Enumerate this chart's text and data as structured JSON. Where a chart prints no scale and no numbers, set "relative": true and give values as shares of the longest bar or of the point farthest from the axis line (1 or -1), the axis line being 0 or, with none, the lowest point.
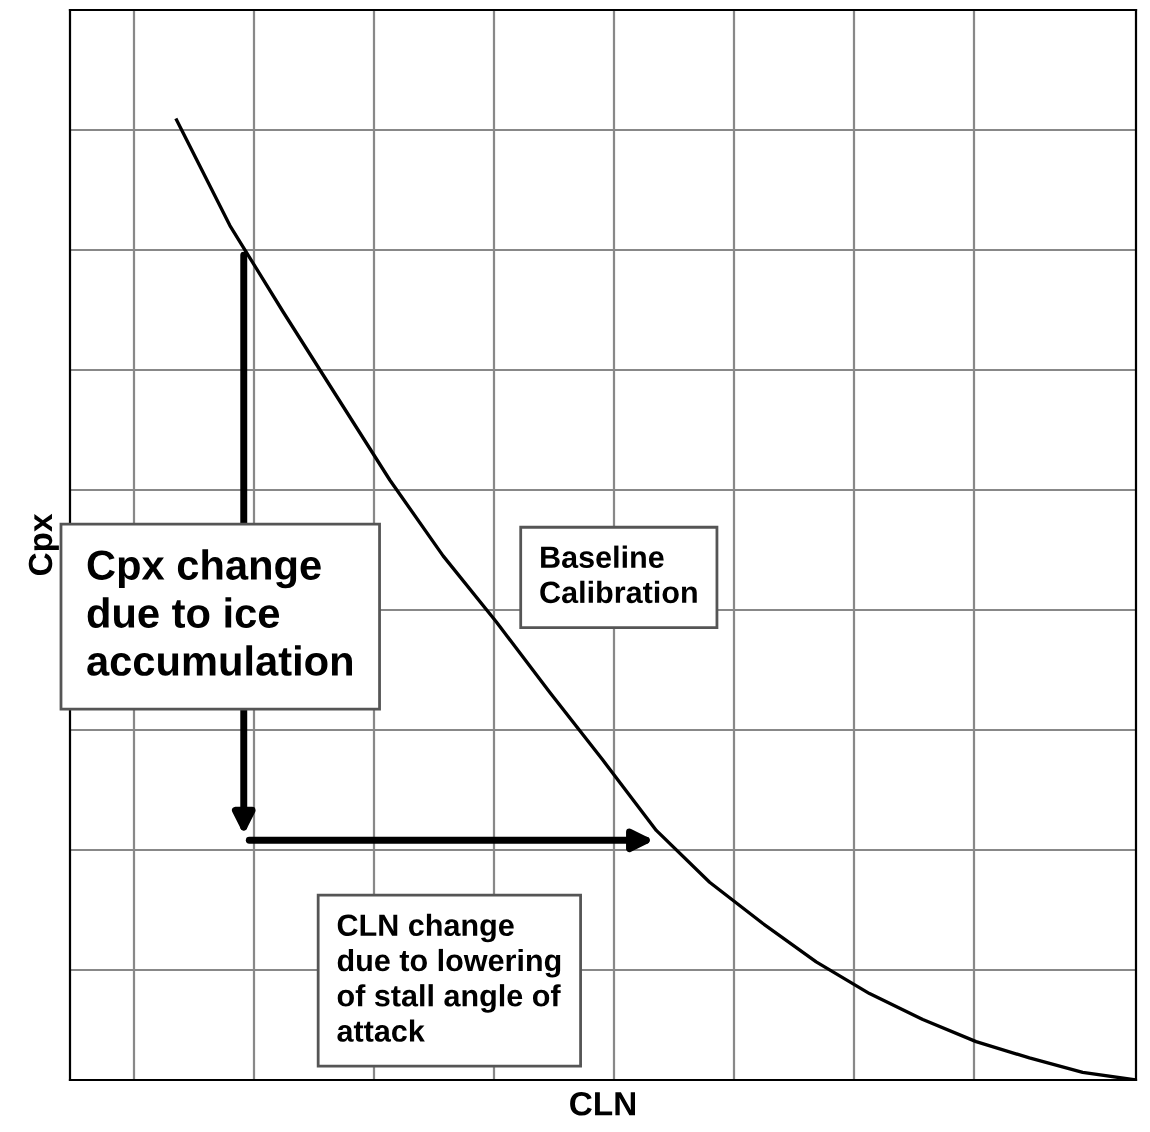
{
  "chart_data": {
    "type": "line",
    "relative": true,
    "xlabel": "CLN",
    "ylabel": "Cpx",
    "categories": [
      null,
      null,
      null,
      null,
      null,
      null,
      null,
      null,
      null,
      null,
      null,
      null,
      null,
      null,
      null,
      null,
      null,
      null,
      null,
      null,
      null
    ],
    "series": [
      {
        "color": "#000000",
        "values": [
          null,
          null,
          1.0,
          0.89,
          0.8,
          0.7125,
          0.625,
          0.546,
          0.477,
          0.404,
          0.333,
          0.26,
          0.206,
          0.163,
          0.123,
          0.09,
          0.063,
          0.04,
          0.023,
          0.008,
          0
        ]
      }
    ],
    "annotations": [
      "Cpx change\ndue to ice\naccumulation",
      "Baseline\nCalibration",
      "CLN change\ndue to lowering\nof stall angle of\nattack"
    ],
    "grid": true,
    "marker": "none",
    "line_style": "solid",
    "legend": false
  }
}
